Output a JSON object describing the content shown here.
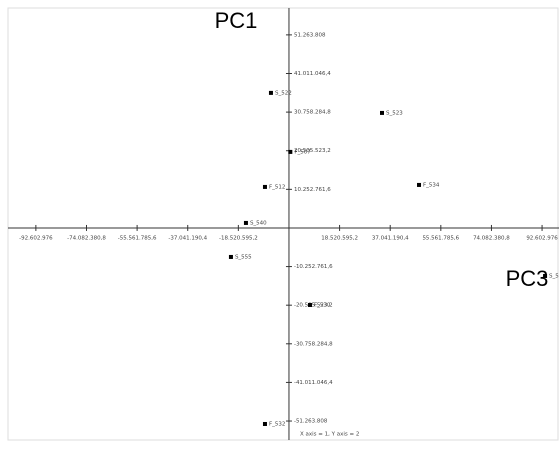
{
  "chart_data": {
    "type": "scatter",
    "annotations": [
      "PC1",
      "PC3"
    ],
    "footnote": "X axis = 1, Y axis = 2",
    "xlim": [
      -102800000,
      98800000
    ],
    "ylim": [
      -56300000,
      58400000
    ],
    "xticks": [
      {
        "value": -92602976,
        "label": "-92.602.976"
      },
      {
        "value": -74082380.8,
        "label": "-74.082.380,8"
      },
      {
        "value": -55561785.6,
        "label": "-55.561.785,6"
      },
      {
        "value": -37041190.4,
        "label": "-37.041.190,4"
      },
      {
        "value": -18520595.2,
        "label": "-18.520.595,2"
      },
      {
        "value": 18520595.2,
        "label": "18.520.595,2"
      },
      {
        "value": 37041190.4,
        "label": "37.041.190,4"
      },
      {
        "value": 55561785.6,
        "label": "55.561.785,6"
      },
      {
        "value": 74082380.8,
        "label": "74.082.380,8"
      },
      {
        "value": 92602976,
        "label": "92.602.976"
      }
    ],
    "yticks": [
      {
        "value": 51263808,
        "label": "51.263.808"
      },
      {
        "value": 41011046.4,
        "label": "41.011.046,4"
      },
      {
        "value": 30758284.8,
        "label": "30.758.284,8"
      },
      {
        "value": 20505523.2,
        "label": "20.505.523,2"
      },
      {
        "value": 10252761.6,
        "label": "10.252.761,6"
      },
      {
        "value": -10252761.6,
        "label": "-10.252.761,6"
      },
      {
        "value": -20505523.2,
        "label": "-20.505.523,2"
      },
      {
        "value": -30758284.8,
        "label": "-30.758.284,8"
      },
      {
        "value": -41011046.4,
        "label": "-41.011.046,4"
      },
      {
        "value": -51263808,
        "label": "-51.263.808"
      }
    ],
    "color": "#000000",
    "point_labels": [
      "S_522",
      "S_523",
      "F_507",
      "F_512",
      "F_534",
      "S_540",
      "S_555",
      "F_530",
      "S_5",
      "F_532"
    ],
    "x": [
      -6590000,
      34040000,
      500000,
      -8780000,
      47580000,
      -15740000,
      -21230000,
      7690000,
      93700000,
      -8780000
    ],
    "values": [
      35860000,
      30540000,
      20190000,
      10890000,
      11420000,
      1330000,
      -7700000,
      -20450000,
      -12750000,
      -52050000
    ]
  }
}
